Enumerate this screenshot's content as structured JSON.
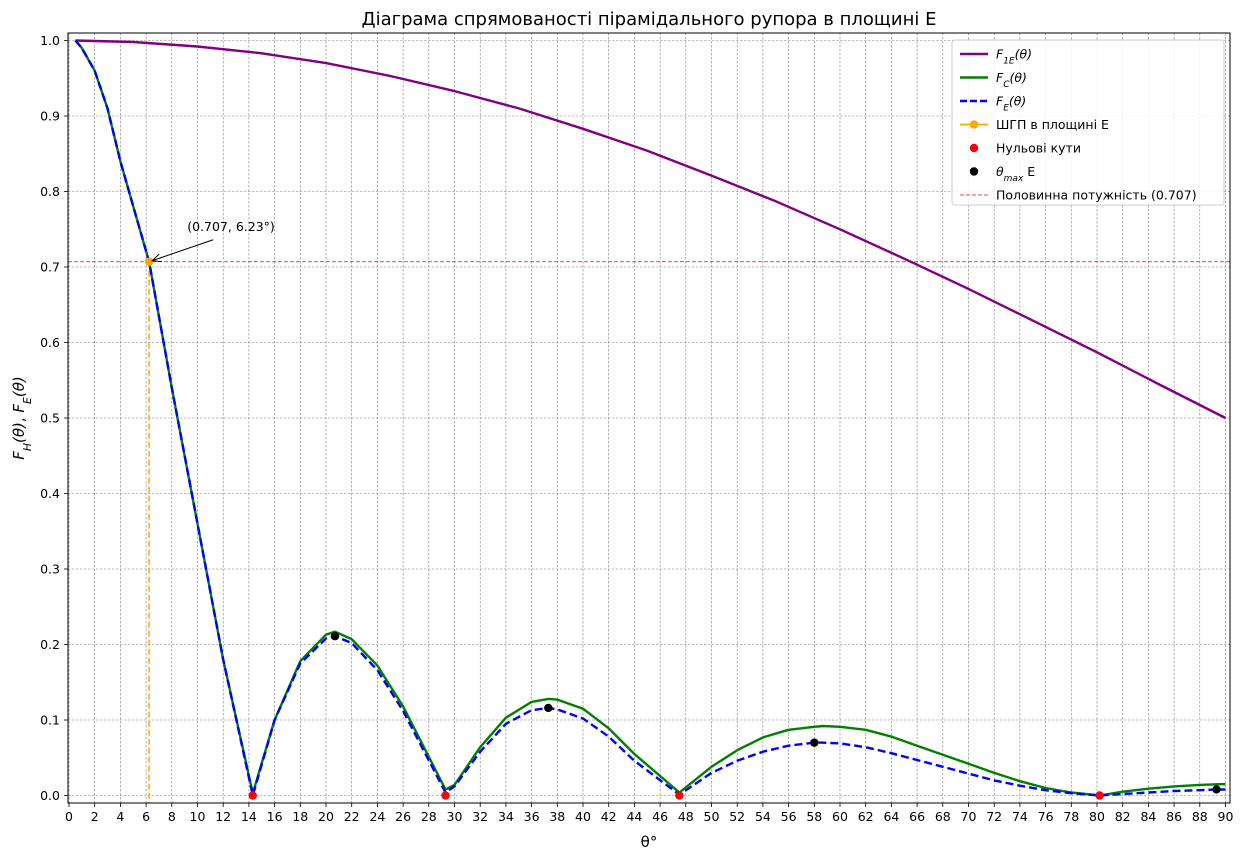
{
  "chart_data": {
    "type": "line",
    "title": "Діаграма спрямованості пірамідального рупора в площині E",
    "xlabel": "θ°",
    "ylabel": {
      "main": "F",
      "sub_h": "H",
      "sub_e": "E",
      "arg": "(θ)"
    },
    "xlim": [
      0,
      90.3
    ],
    "ylim": [
      -0.01,
      1.005
    ],
    "x_ticks": [
      0,
      2,
      4,
      6,
      8,
      10,
      12,
      14,
      16,
      18,
      20,
      22,
      24,
      26,
      28,
      30,
      32,
      34,
      36,
      38,
      40,
      42,
      44,
      46,
      48,
      50,
      52,
      54,
      56,
      58,
      60,
      62,
      64,
      66,
      68,
      70,
      72,
      74,
      76,
      78,
      80,
      82,
      84,
      86,
      88,
      90
    ],
    "y_ticks": [
      0.0,
      0.1,
      0.2,
      0.3,
      0.4,
      0.5,
      0.6,
      0.7,
      0.8,
      0.9,
      1.0
    ],
    "y_tick_labels": [
      "0.0",
      "0.1",
      "0.2",
      "0.3",
      "0.4",
      "0.5",
      "0.6",
      "0.7",
      "0.8",
      "0.9",
      "1.0"
    ],
    "grid": true,
    "legend_position": "top-right",
    "series": [
      {
        "name": "F_1E(θ)",
        "label": {
          "main": "F",
          "sub": "1E",
          "arg": "(θ)"
        },
        "color": "#800080",
        "style": "solid",
        "x": [
          0.5,
          5,
          10,
          15,
          20,
          25,
          30,
          35,
          40,
          45,
          50,
          55,
          60,
          65,
          70,
          75,
          80,
          85,
          90
        ],
        "y": [
          1.0,
          0.998,
          0.992,
          0.983,
          0.97,
          0.953,
          0.933,
          0.91,
          0.883,
          0.854,
          0.821,
          0.787,
          0.75,
          0.711,
          0.671,
          0.629,
          0.587,
          0.543,
          0.5
        ]
      },
      {
        "name": "F_C(θ)",
        "label": {
          "main": "F",
          "sub": "C",
          "arg": "(θ)"
        },
        "color": "#008000",
        "style": "solid",
        "x": [
          0.5,
          1,
          2,
          3,
          4,
          5,
          6.23,
          8,
          10,
          12,
          14.3,
          16,
          18,
          20,
          20.7,
          22,
          24,
          26,
          29.3,
          30,
          32,
          34,
          36,
          37.3,
          38,
          40,
          42,
          44,
          47.5,
          50,
          52,
          54,
          56,
          58,
          58.7,
          60,
          62,
          64,
          66,
          68,
          70,
          72,
          74,
          76,
          78,
          80.2,
          82,
          84,
          86,
          88,
          89.5,
          90
        ],
        "y": [
          1.0,
          0.99,
          0.96,
          0.91,
          0.84,
          0.78,
          0.707,
          0.54,
          0.36,
          0.18,
          0.003,
          0.1,
          0.178,
          0.213,
          0.217,
          0.207,
          0.172,
          0.118,
          0.008,
          0.014,
          0.064,
          0.103,
          0.124,
          0.128,
          0.127,
          0.115,
          0.089,
          0.055,
          0.004,
          0.038,
          0.06,
          0.077,
          0.087,
          0.091,
          0.092,
          0.091,
          0.087,
          0.078,
          0.066,
          0.054,
          0.042,
          0.03,
          0.019,
          0.01,
          0.004,
          0.0,
          0.005,
          0.009,
          0.012,
          0.014,
          0.015,
          0.015
        ]
      },
      {
        "name": "F_E(θ)",
        "label": {
          "main": "F",
          "sub": "E",
          "arg": "(θ)"
        },
        "color": "#0000ff",
        "style": "dashed",
        "x": [
          0.5,
          1,
          2,
          3,
          4,
          5,
          6.23,
          8,
          10,
          12,
          14.3,
          16,
          18,
          20,
          20.7,
          22,
          24,
          26,
          29.3,
          30,
          32,
          34,
          36,
          37.3,
          38,
          40,
          42,
          44,
          47.5,
          50,
          52,
          54,
          56,
          58,
          58.5,
          60,
          62,
          64,
          66,
          68,
          70,
          72,
          74,
          76,
          78,
          80.2,
          82,
          84,
          86,
          88,
          89.3,
          90
        ],
        "y": [
          1.0,
          0.99,
          0.96,
          0.91,
          0.84,
          0.78,
          0.707,
          0.54,
          0.36,
          0.18,
          0.0,
          0.1,
          0.175,
          0.208,
          0.211,
          0.202,
          0.166,
          0.112,
          0.004,
          0.012,
          0.058,
          0.095,
          0.113,
          0.116,
          0.114,
          0.102,
          0.078,
          0.046,
          0.001,
          0.03,
          0.046,
          0.058,
          0.066,
          0.07,
          0.07,
          0.069,
          0.064,
          0.056,
          0.047,
          0.038,
          0.029,
          0.02,
          0.013,
          0.007,
          0.003,
          0.0,
          0.002,
          0.004,
          0.006,
          0.007,
          0.008,
          0.008
        ]
      }
    ],
    "markers": [
      {
        "name": "ШГП в площині E",
        "color": "#ffa500",
        "kind": "line-marker",
        "points": [
          [
            6.23,
            0.707
          ]
        ]
      },
      {
        "name": "Нульові кути",
        "color": "#ff0000",
        "kind": "dot",
        "points": [
          [
            14.3,
            0.0
          ],
          [
            29.3,
            0.0
          ],
          [
            47.5,
            0.0
          ],
          [
            80.2,
            0.0
          ]
        ]
      },
      {
        "name": "θ_max E",
        "label": {
          "main": "θ",
          "sub": "max",
          "suffix": " E"
        },
        "color": "#000000",
        "kind": "dot",
        "points": [
          [
            20.7,
            0.211
          ],
          [
            37.3,
            0.116
          ],
          [
            58.0,
            0.07
          ],
          [
            89.3,
            0.008
          ]
        ]
      }
    ],
    "hline": {
      "name": "Половинна потужність (0.707)",
      "y": 0.707,
      "color": "#ff0000",
      "style": "dashed"
    },
    "vline": {
      "x": 6.23,
      "y_to": 0.707,
      "color": "#ffa500",
      "style": "dashed"
    },
    "annotation": {
      "text": "(0.707, 6.23°)",
      "target": [
        6.23,
        0.707
      ],
      "text_pos": [
        9.2,
        0.748
      ]
    }
  }
}
